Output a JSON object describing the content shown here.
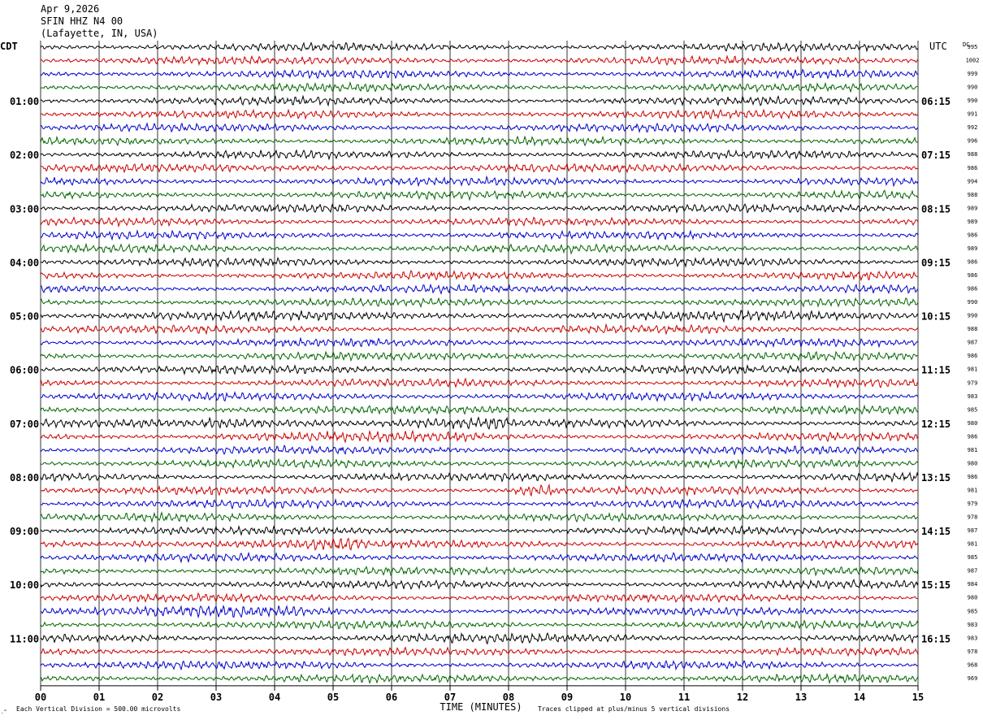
{
  "header": {
    "date": "Apr 9,2026",
    "station": "SFIN HHZ N4 00",
    "location": "(Lafayette, IN, USA)"
  },
  "labels": {
    "left_zone": "CDT",
    "right_zone": "UTC",
    "dc": "DC",
    "xlabel": "TIME (MINUTES)",
    "scale_note": "Each Vertical Division =  500.00 microvolts",
    "clip_note": "Traces clipped at plus/minus 5 vertical divisions"
  },
  "colors": {
    "trace_cycle": [
      "#000000",
      "#cc0000",
      "#0000cc",
      "#006600"
    ],
    "grid": "#000000",
    "background": "#ffffff"
  },
  "chart_data": {
    "type": "line",
    "rows": 48,
    "minutes_per_row": 15,
    "xlim": [
      0,
      15
    ],
    "x_ticks": [
      "00",
      "01",
      "02",
      "03",
      "04",
      "05",
      "06",
      "07",
      "08",
      "09",
      "10",
      "11",
      "12",
      "13",
      "14",
      "15"
    ],
    "left_time_labels": [
      {
        "row": 4,
        "label": "01:00"
      },
      {
        "row": 8,
        "label": "02:00"
      },
      {
        "row": 12,
        "label": "03:00"
      },
      {
        "row": 16,
        "label": "04:00"
      },
      {
        "row": 20,
        "label": "05:00"
      },
      {
        "row": 24,
        "label": "06:00"
      },
      {
        "row": 28,
        "label": "07:00"
      },
      {
        "row": 32,
        "label": "08:00"
      },
      {
        "row": 36,
        "label": "09:00"
      },
      {
        "row": 40,
        "label": "10:00"
      },
      {
        "row": 44,
        "label": "11:00"
      }
    ],
    "right_time_labels": [
      {
        "row": 4,
        "label": "06:15"
      },
      {
        "row": 8,
        "label": "07:15"
      },
      {
        "row": 12,
        "label": "08:15"
      },
      {
        "row": 16,
        "label": "09:15"
      },
      {
        "row": 20,
        "label": "10:15"
      },
      {
        "row": 24,
        "label": "11:15"
      },
      {
        "row": 28,
        "label": "12:15"
      },
      {
        "row": 32,
        "label": "13:15"
      },
      {
        "row": 36,
        "label": "14:15"
      },
      {
        "row": 40,
        "label": "15:15"
      },
      {
        "row": 44,
        "label": "16:15"
      }
    ],
    "dc_values": [
      "995",
      "1002",
      "999",
      "990",
      "990",
      "991",
      "992",
      "996",
      "988",
      "986",
      "994",
      "988",
      "989",
      "989",
      "986",
      "989",
      "986",
      "986",
      "986",
      "990",
      "990",
      "988",
      "987",
      "986",
      "981",
      "979",
      "983",
      "985",
      "980",
      "986",
      "981",
      "980",
      "986",
      "981",
      "979",
      "978",
      "987",
      "981",
      "985",
      "987",
      "984",
      "980",
      "985",
      "983",
      "983",
      "978",
      "968",
      "969"
    ],
    "bursts": [
      {
        "row": 28,
        "start_min": 2.8,
        "end_min": 8.0,
        "gain": 1.8
      },
      {
        "row": 29,
        "start_min": 3.0,
        "end_min": 7.5,
        "gain": 1.3
      },
      {
        "row": 33,
        "start_min": 8.1,
        "end_min": 8.8,
        "gain": 2.2
      },
      {
        "row": 37,
        "start_min": 1.5,
        "end_min": 5.5,
        "gain": 1.7
      },
      {
        "row": 42,
        "start_min": 0.0,
        "end_min": 4.5,
        "gain": 1.5
      },
      {
        "row": 20,
        "start_min": 0.0,
        "end_min": 15.0,
        "gain": 1.2
      },
      {
        "row": 9,
        "start_min": 4.5,
        "end_min": 9.5,
        "gain": 1.2
      },
      {
        "row": 44,
        "start_min": 6.0,
        "end_min": 12.0,
        "gain": 1.2
      }
    ]
  }
}
